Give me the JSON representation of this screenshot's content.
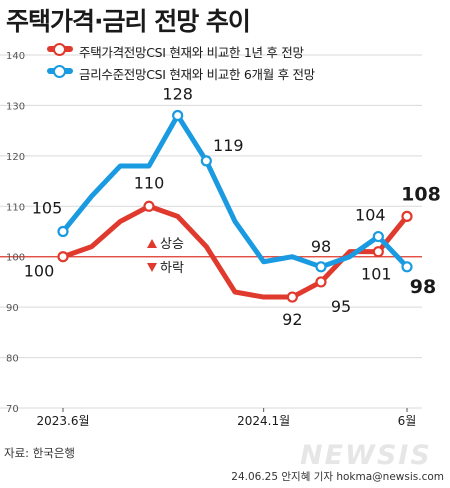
{
  "title": "주택가격·금리 전망 추이",
  "source": "자료: 한국은행",
  "credit": "24.06.25 안지혜 기자 hokma@newsis.com",
  "watermark": "NEWSIS",
  "notes": {
    "up": "상승",
    "down": "하락"
  },
  "colors": {
    "red": "#e03a2e",
    "blue": "#1a9ae0",
    "grid": "#d9d9d9",
    "ref": "#e03a2e"
  },
  "chart_data": {
    "type": "line",
    "x_labels": [
      "2023.6월",
      "2024.1월",
      "6월"
    ],
    "x_label_index": [
      0,
      7,
      12
    ],
    "ylim": [
      70,
      140
    ],
    "yticks": [
      70,
      80,
      90,
      100,
      110,
      120,
      130,
      140
    ],
    "reference_y": 100,
    "series": [
      {
        "name": "주택가격전망CSI 현재와 비교한 1년 후 전망",
        "color": "#e03a2e",
        "values": [
          100,
          102,
          107,
          110,
          108,
          102,
          93,
          92,
          92,
          95,
          101,
          101,
          108
        ],
        "markers": [
          0,
          3,
          8,
          9,
          11,
          12
        ],
        "labels": [
          {
            "i": 0,
            "text": "100"
          },
          {
            "i": 3,
            "text": "110"
          },
          {
            "i": 8,
            "text": "92"
          },
          {
            "i": 9,
            "text": "95"
          },
          {
            "i": 11,
            "text": "101"
          },
          {
            "i": 12,
            "text": "108"
          }
        ]
      },
      {
        "name": "금리수준전망CSI 현재와 비교한 6개월 후 전망",
        "color": "#1a9ae0",
        "values": [
          105,
          112,
          118,
          118,
          128,
          119,
          107,
          99,
          100,
          98,
          100,
          104,
          98
        ],
        "markers": [
          0,
          4,
          5,
          9,
          11,
          12
        ],
        "labels": [
          {
            "i": 0,
            "text": "105"
          },
          {
            "i": 4,
            "text": "128"
          },
          {
            "i": 5,
            "text": "119"
          },
          {
            "i": 9,
            "text": "98"
          },
          {
            "i": 11,
            "text": "104"
          },
          {
            "i": 12,
            "text": "98"
          }
        ]
      }
    ]
  }
}
